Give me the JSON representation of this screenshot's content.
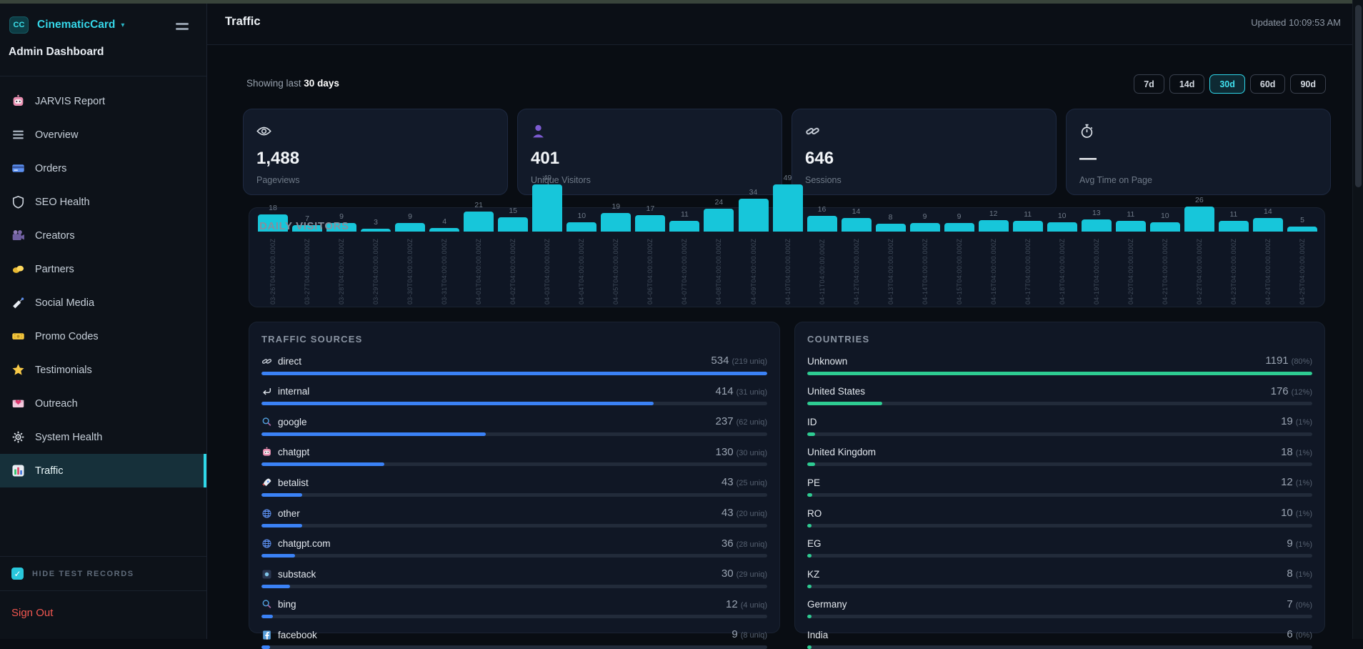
{
  "colors": {
    "accent_cyan": "#2fd8e8",
    "chart_bar_cyan": "#17c6da",
    "source_bar_blue": "#3b82f6",
    "country_bar_green": "#2ecc92",
    "sign_out_red": "#f25750"
  },
  "sidebar": {
    "logo_text": "CC",
    "brand": "CinematicCard",
    "brand_caret": "▾",
    "subtitle": "Admin Dashboard",
    "items": [
      {
        "label": "JARVIS Report",
        "icon": "robot-icon",
        "active": false
      },
      {
        "label": "Overview",
        "icon": "menu-lines-icon",
        "active": false
      },
      {
        "label": "Orders",
        "icon": "credit-card-icon",
        "active": false
      },
      {
        "label": "SEO Health",
        "icon": "shield-icon",
        "active": false
      },
      {
        "label": "Creators",
        "icon": "movie-camera-icon",
        "active": false
      },
      {
        "label": "Partners",
        "icon": "handshake-icon",
        "active": false
      },
      {
        "label": "Social Media",
        "icon": "satellite-icon",
        "active": false
      },
      {
        "label": "Promo Codes",
        "icon": "ticket-icon",
        "active": false
      },
      {
        "label": "Testimonials",
        "icon": "star-icon",
        "active": false
      },
      {
        "label": "Outreach",
        "icon": "love-letter-icon",
        "active": false
      },
      {
        "label": "System Health",
        "icon": "gear-icon",
        "active": false
      },
      {
        "label": "Traffic",
        "icon": "bar-chart-icon",
        "active": true
      }
    ],
    "hide_test_records_label": "HIDE TEST RECORDS",
    "hide_test_checked": true,
    "check_glyph": "✓",
    "sign_out_label": "Sign Out"
  },
  "header": {
    "title": "Traffic",
    "updated": "Updated 10:09:53 AM"
  },
  "controls": {
    "showing_prefix": "Showing last ",
    "showing_value": "30 days",
    "ranges": [
      {
        "label": "7d",
        "active": false
      },
      {
        "label": "14d",
        "active": false
      },
      {
        "label": "30d",
        "active": true
      },
      {
        "label": "60d",
        "active": false
      },
      {
        "label": "90d",
        "active": false
      }
    ]
  },
  "stats": [
    {
      "icon": "eye-icon",
      "value": "1,488",
      "label": "Pageviews"
    },
    {
      "icon": "person-icon",
      "value": "401",
      "label": "Unique Visitors"
    },
    {
      "icon": "link-icon",
      "value": "646",
      "label": "Sessions"
    },
    {
      "icon": "stopwatch-icon",
      "value": "—",
      "label": "Avg Time on Page"
    }
  ],
  "chart_data": {
    "type": "bar",
    "title": "DAILY VISITORS",
    "x": [
      "03-26T04:00:00.000Z",
      "03-27T04:00:00.000Z",
      "03-28T04:00:00.000Z",
      "03-29T04:00:00.000Z",
      "03-30T04:00:00.000Z",
      "03-31T04:00:00.000Z",
      "04-01T04:00:00.000Z",
      "04-02T04:00:00.000Z",
      "04-03T04:00:00.000Z",
      "04-04T04:00:00.000Z",
      "04-05T04:00:00.000Z",
      "04-06T04:00:00.000Z",
      "04-07T04:00:00.000Z",
      "04-08T04:00:00.000Z",
      "04-09T04:00:00.000Z",
      "04-10T04:00:00.000Z",
      "04-11T04:00:00.000Z",
      "04-12T04:00:00.000Z",
      "04-13T04:00:00.000Z",
      "04-14T04:00:00.000Z",
      "04-15T04:00:00.000Z",
      "04-16T04:00:00.000Z",
      "04-17T04:00:00.000Z",
      "04-18T04:00:00.000Z",
      "04-19T04:00:00.000Z",
      "04-20T04:00:00.000Z",
      "04-21T04:00:00.000Z",
      "04-22T04:00:00.000Z",
      "04-23T04:00:00.000Z",
      "04-24T04:00:00.000Z",
      "04-25T04:00:00.000Z"
    ],
    "values": [
      18,
      7,
      9,
      3,
      9,
      4,
      21,
      15,
      49,
      10,
      19,
      17,
      11,
      24,
      34,
      49,
      16,
      14,
      8,
      9,
      9,
      12,
      11,
      10,
      13,
      11,
      10,
      26,
      11,
      14,
      5
    ],
    "ylim": [
      0,
      49
    ],
    "grid": false,
    "value_labels": true,
    "bar_color": "#17c6da"
  },
  "traffic_sources": {
    "title": "TRAFFIC SOURCES",
    "bar_color": "#3b82f6",
    "rows": [
      {
        "icon": "link-icon",
        "label": "direct",
        "value": 534,
        "sub": "(219 uniq)"
      },
      {
        "icon": "return-arrow-icon",
        "label": "internal",
        "value": 414,
        "sub": "(31 uniq)"
      },
      {
        "icon": "magnifier-icon",
        "label": "google",
        "value": 237,
        "sub": "(62 uniq)"
      },
      {
        "icon": "robot-icon",
        "label": "chatgpt",
        "value": 130,
        "sub": "(30 uniq)"
      },
      {
        "icon": "rocket-icon",
        "label": "betalist",
        "value": 43,
        "sub": "(25 uniq)"
      },
      {
        "icon": "globe-icon",
        "label": "other",
        "value": 43,
        "sub": "(20 uniq)"
      },
      {
        "icon": "globe-icon",
        "label": "chatgpt.com",
        "value": 36,
        "sub": "(28 uniq)"
      },
      {
        "icon": "newsletter-icon",
        "label": "substack",
        "value": 30,
        "sub": "(29 uniq)"
      },
      {
        "icon": "magnifier-icon",
        "label": "bing",
        "value": 12,
        "sub": "(4 uniq)"
      },
      {
        "icon": "facebook-icon",
        "label": "facebook",
        "value": 9,
        "sub": "(8 uniq)"
      }
    ]
  },
  "countries": {
    "title": "COUNTRIES",
    "bar_color": "#2ecc92",
    "rows": [
      {
        "label": "Unknown",
        "value": 1191,
        "sub": "(80%)"
      },
      {
        "label": "United States",
        "value": 176,
        "sub": "(12%)"
      },
      {
        "label": "ID",
        "value": 19,
        "sub": "(1%)"
      },
      {
        "label": "United Kingdom",
        "value": 18,
        "sub": "(1%)"
      },
      {
        "label": "PE",
        "value": 12,
        "sub": "(1%)"
      },
      {
        "label": "RO",
        "value": 10,
        "sub": "(1%)"
      },
      {
        "label": "EG",
        "value": 9,
        "sub": "(1%)"
      },
      {
        "label": "KZ",
        "value": 8,
        "sub": "(1%)"
      },
      {
        "label": "Germany",
        "value": 7,
        "sub": "(0%)"
      },
      {
        "label": "India",
        "value": 6,
        "sub": "(0%)"
      }
    ]
  }
}
